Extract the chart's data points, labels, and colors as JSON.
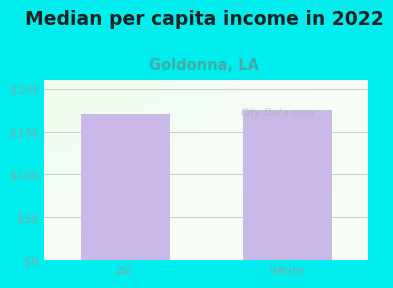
{
  "title": "Median per capita income in 2022",
  "subtitle": "Goldonna, LA",
  "categories": [
    "All",
    "White"
  ],
  "values": [
    17000,
    17500
  ],
  "bar_color": "#c9b8e8",
  "title_fontsize": 13.5,
  "title_color": "#222222",
  "subtitle_fontsize": 10.5,
  "subtitle_color": "#44aaaa",
  "tick_color": "#7aacac",
  "background_color": "#00eeee",
  "plot_bg_color_tl": "#e0f0dc",
  "plot_bg_color_br": "#f8faf8",
  "ylim": [
    0,
    21000
  ],
  "yticks": [
    0,
    5000,
    10000,
    15000,
    20000
  ],
  "ytick_labels": [
    "$0",
    "$5k",
    "$10k",
    "$15k",
    "$20k"
  ],
  "grid_color": "#cccccc",
  "bar_width": 0.55,
  "watermark": "City-Data.com"
}
